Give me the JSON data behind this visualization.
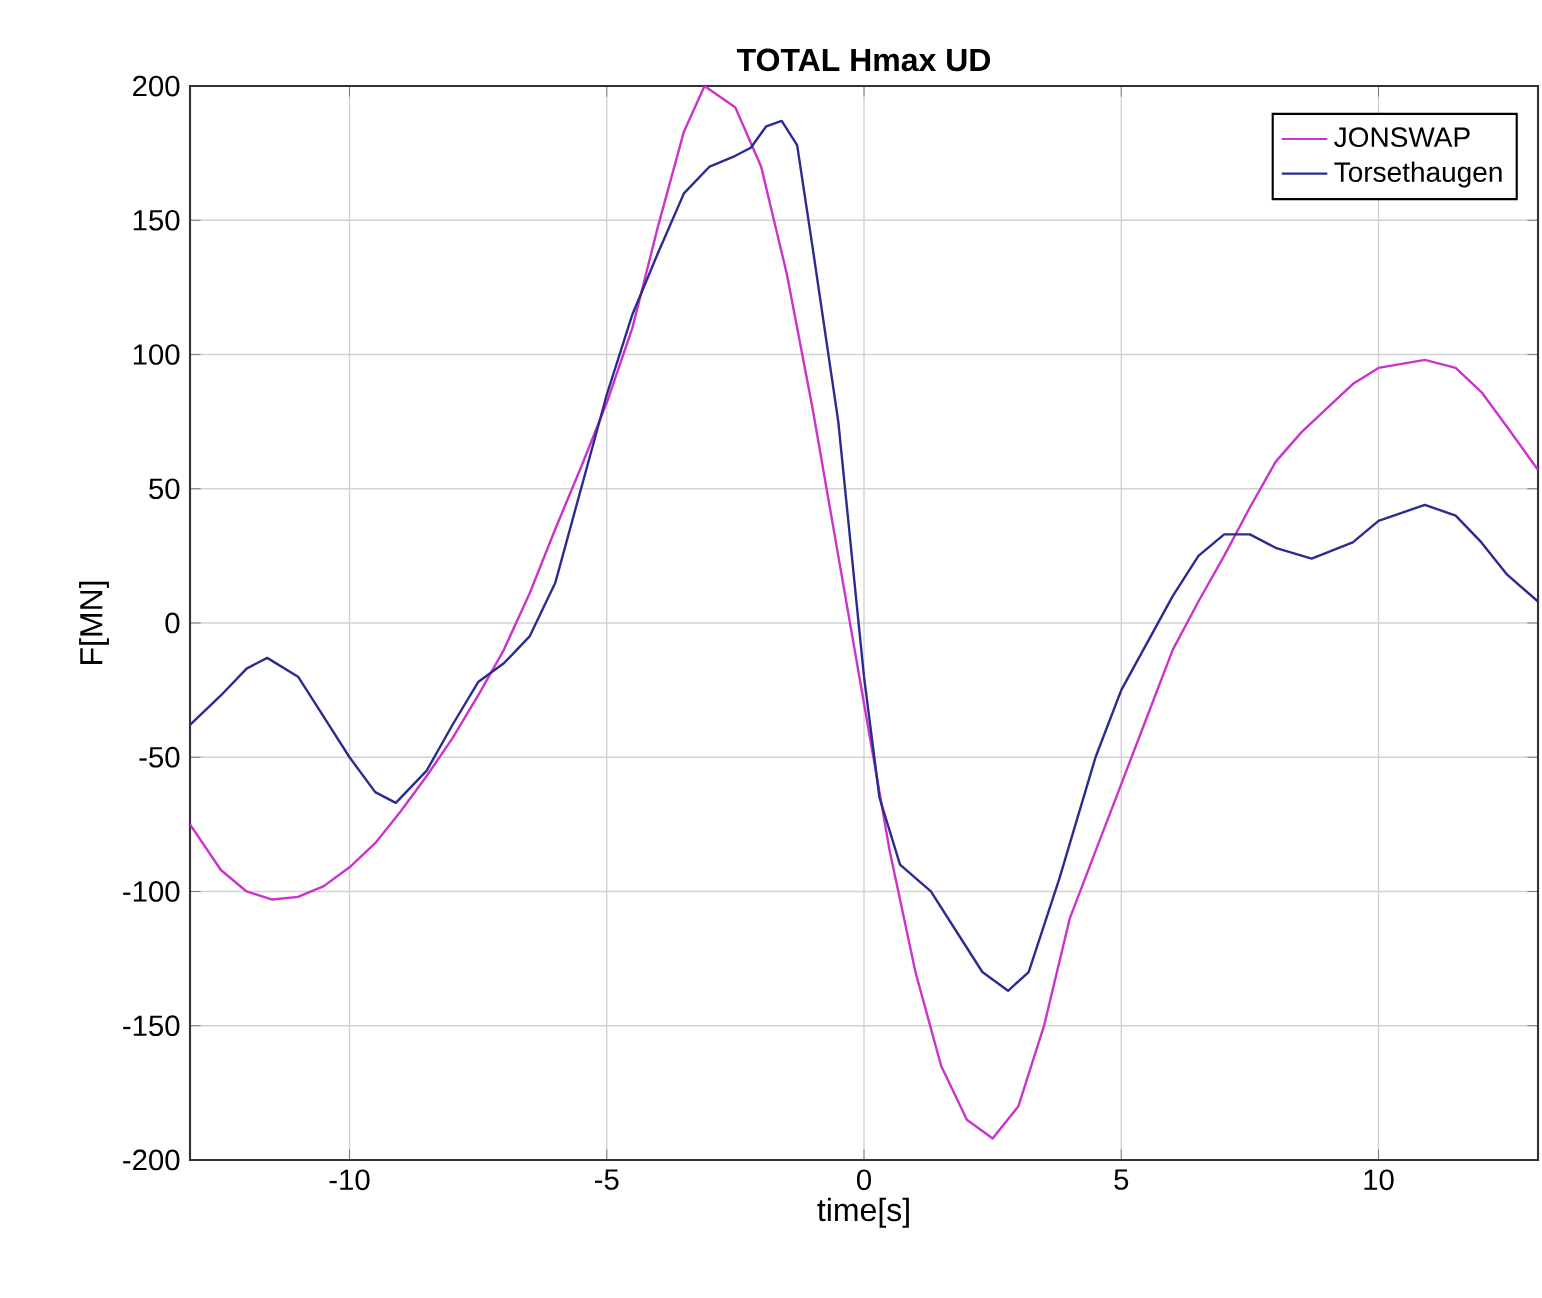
{
  "chart_data": {
    "type": "line",
    "title": "TOTAL Hmax UD",
    "xlabel": "time[s]",
    "ylabel": "F[MN]",
    "xlim": [
      -13.1,
      13.1
    ],
    "ylim": [
      -200,
      200
    ],
    "xticks": [
      -10,
      -5,
      0,
      5,
      10
    ],
    "yticks": [
      -200,
      -150,
      -100,
      -50,
      0,
      50,
      100,
      150,
      200
    ],
    "grid": true,
    "legend": "top right",
    "series": [
      {
        "name": "JONSWAP",
        "color": "#cc33cc",
        "x": [
          -13.1,
          -12.5,
          -12,
          -11.5,
          -11,
          -10.5,
          -10,
          -9.5,
          -9,
          -8.5,
          -8,
          -7.5,
          -7,
          -6.5,
          -6,
          -5.5,
          -5,
          -4.5,
          -4,
          -3.5,
          -3.1,
          -2.5,
          -2,
          -1.5,
          -1,
          -0.5,
          0,
          0.5,
          1,
          1.5,
          2,
          2.5,
          3,
          3.5,
          4,
          4.5,
          5,
          5.5,
          6,
          6.5,
          7,
          7.5,
          8,
          8.5,
          9,
          9.5,
          10,
          10.9,
          11.5,
          12,
          12.5,
          13.1
        ],
        "values": [
          -75,
          -92,
          -100,
          -103,
          -102,
          -98,
          -91,
          -82,
          -70,
          -57,
          -43,
          -27,
          -10,
          11,
          35,
          58,
          82,
          110,
          148,
          183,
          200,
          192,
          170,
          130,
          80,
          25,
          -30,
          -85,
          -130,
          -165,
          -185,
          -192,
          -180,
          -150,
          -110,
          -85,
          -60,
          -35,
          -10,
          8,
          25,
          43,
          60,
          71,
          80,
          89,
          95,
          98,
          95,
          86,
          73,
          57
        ]
      },
      {
        "name": "Torsethaugen",
        "color": "#2b2b90",
        "x": [
          -13.1,
          -12.5,
          -12,
          -11.6,
          -11,
          -10.5,
          -10,
          -9.5,
          -9.1,
          -8.5,
          -8,
          -7.5,
          -7,
          -6.5,
          -6,
          -5.5,
          -5,
          -4.5,
          -4,
          -3.5,
          -3,
          -2.5,
          -2.2,
          -1.9,
          -1.6,
          -1.3,
          -1,
          -0.5,
          0,
          0.3,
          0.7,
          1.3,
          1.8,
          2.3,
          2.8,
          3.2,
          3.8,
          4.5,
          5,
          6,
          6.5,
          7,
          7.5,
          8,
          8.7,
          9.5,
          10,
          10.9,
          11.5,
          12,
          12.5,
          13.1
        ],
        "values": [
          -38,
          -27,
          -17,
          -13,
          -20,
          -35,
          -50,
          -63,
          -67,
          -55,
          -38,
          -22,
          -15,
          -5,
          15,
          50,
          85,
          115,
          138,
          160,
          170,
          174,
          177,
          185,
          187,
          178,
          140,
          75,
          -20,
          -65,
          -90,
          -100,
          -115,
          -130,
          -137,
          -130,
          -95,
          -50,
          -25,
          10,
          25,
          33,
          33,
          28,
          24,
          30,
          38,
          44,
          40,
          30,
          18,
          8
        ]
      }
    ]
  }
}
